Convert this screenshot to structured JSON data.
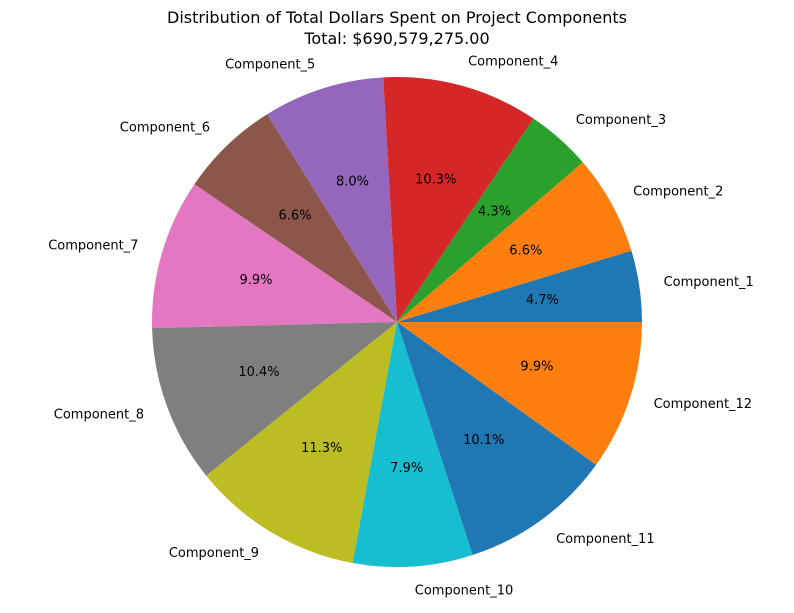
{
  "chart_data": {
    "type": "pie",
    "title": "Distribution of Total Dollars Spent on Project Components",
    "subtitle": "Total: $690,579,275.00",
    "start_angle_deg": 0,
    "direction": "counterclockwise",
    "slices": [
      {
        "label": "Component_1",
        "percent": 4.7,
        "pct_label": "4.7%",
        "color": "#1f77b4"
      },
      {
        "label": "Component_2",
        "percent": 6.6,
        "pct_label": "6.6%",
        "color": "#ff7f0e"
      },
      {
        "label": "Component_3",
        "percent": 4.3,
        "pct_label": "4.3%",
        "color": "#2ca02c"
      },
      {
        "label": "Component_4",
        "percent": 10.3,
        "pct_label": "10.3%",
        "color": "#d62728"
      },
      {
        "label": "Component_5",
        "percent": 8.0,
        "pct_label": "8.0%",
        "color": "#9467bd"
      },
      {
        "label": "Component_6",
        "percent": 6.6,
        "pct_label": "6.6%",
        "color": "#8c564b"
      },
      {
        "label": "Component_7",
        "percent": 9.9,
        "pct_label": "9.9%",
        "color": "#e377c2"
      },
      {
        "label": "Component_8",
        "percent": 10.4,
        "pct_label": "10.4%",
        "color": "#7f7f7f"
      },
      {
        "label": "Component_9",
        "percent": 11.3,
        "pct_label": "11.3%",
        "color": "#bcbd22"
      },
      {
        "label": "Component_10",
        "percent": 7.9,
        "pct_label": "7.9%",
        "color": "#17becf"
      },
      {
        "label": "Component_11",
        "percent": 10.1,
        "pct_label": "10.1%",
        "color": "#1f77b4"
      },
      {
        "label": "Component_12",
        "percent": 9.9,
        "pct_label": "9.9%",
        "color": "#ff7f0e"
      }
    ]
  }
}
